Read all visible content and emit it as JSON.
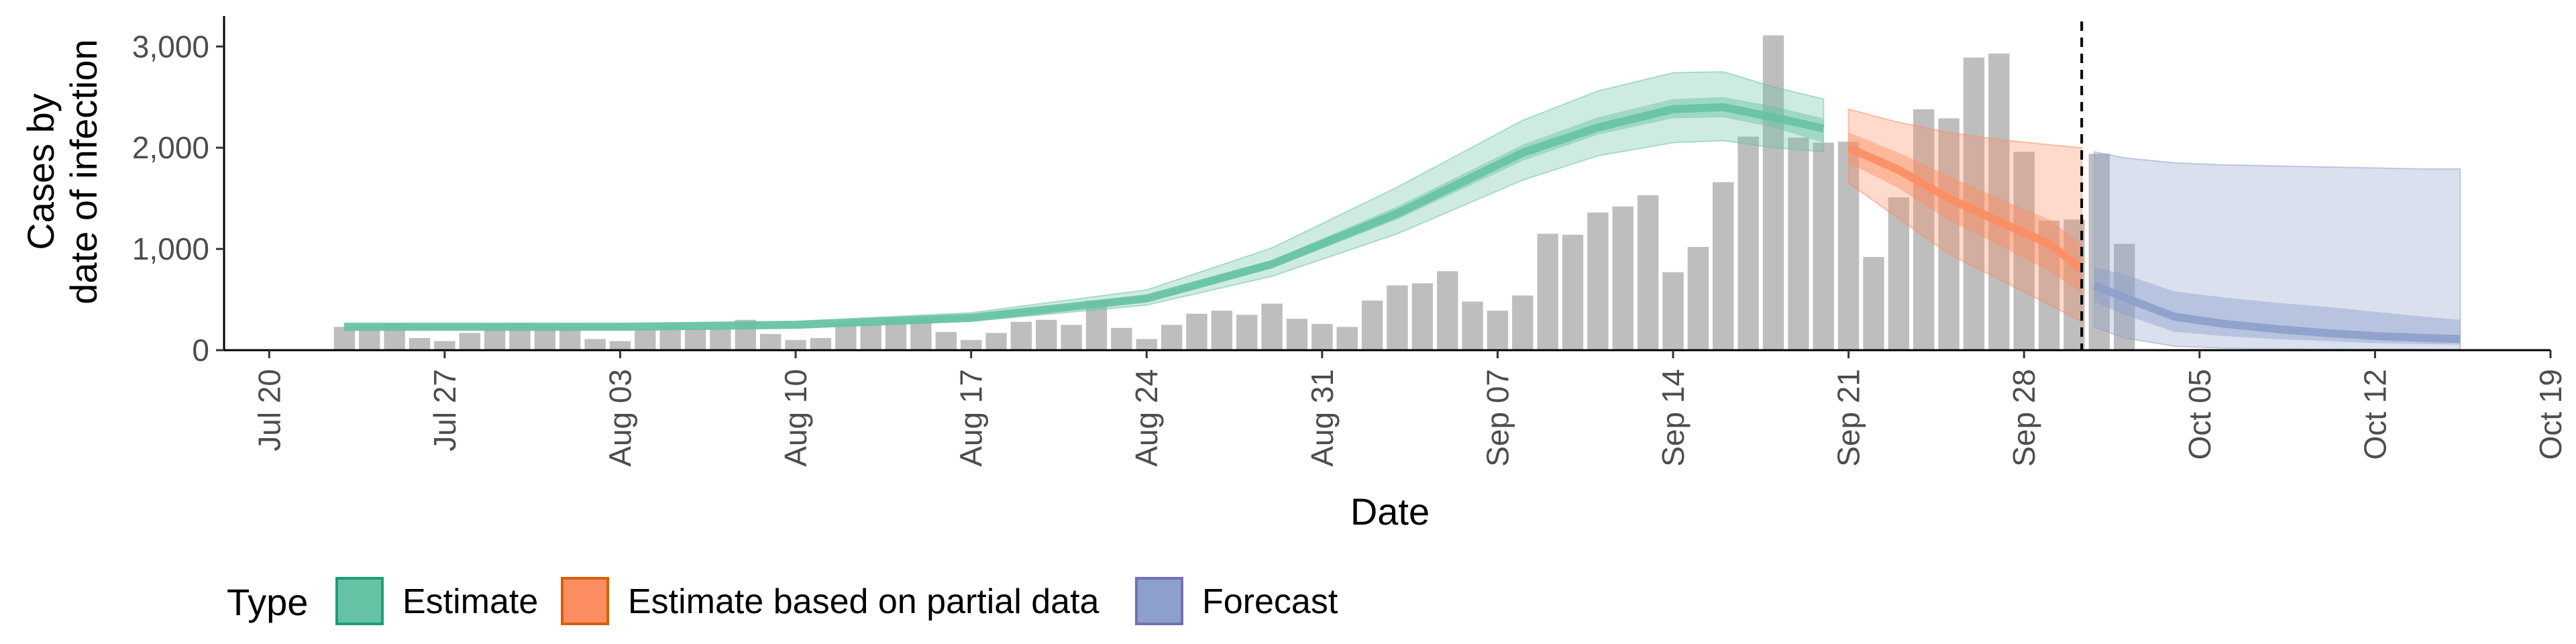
{
  "chart_data": {
    "type": "bar",
    "title": "",
    "xlabel": "Date",
    "ylabel_lines": [
      "Cases by",
      "date of infection"
    ],
    "ylim": [
      0,
      3300
    ],
    "y_ticks": [
      {
        "value": 0,
        "label": "0"
      },
      {
        "value": 1000,
        "label": "1,000"
      },
      {
        "value": 2000,
        "label": "2,000"
      },
      {
        "value": 3000,
        "label": "3,000"
      }
    ],
    "x_ticks": [
      {
        "day": 0,
        "label": "Jul 20"
      },
      {
        "day": 7,
        "label": "Jul 27"
      },
      {
        "day": 14,
        "label": "Aug 03"
      },
      {
        "day": 21,
        "label": "Aug 10"
      },
      {
        "day": 28,
        "label": "Aug 17"
      },
      {
        "day": 35,
        "label": "Aug 24"
      },
      {
        "day": 42,
        "label": "Aug 31"
      },
      {
        "day": 49,
        "label": "Sep 07"
      },
      {
        "day": 56,
        "label": "Sep 14"
      },
      {
        "day": 63,
        "label": "Sep 21"
      },
      {
        "day": 70,
        "label": "Sep 28"
      },
      {
        "day": 77,
        "label": "Oct 05"
      },
      {
        "day": 84,
        "label": "Oct 12"
      },
      {
        "day": 91,
        "label": "Oct 19"
      }
    ],
    "x_range_days": [
      -1.8,
      91
    ],
    "date_axis": {
      "tick_dates": [
        "Jul 20",
        "Jul 27",
        "Aug 03",
        "Aug 10",
        "Aug 17",
        "Aug 24",
        "Aug 31",
        "Sep 07",
        "Sep 14",
        "Sep 21",
        "Sep 28",
        "Oct 05",
        "Oct 12",
        "Oct 19"
      ]
    },
    "bars": {
      "start_day": 3,
      "color": "#bebebe",
      "values": [
        230,
        240,
        260,
        120,
        90,
        170,
        250,
        270,
        240,
        230,
        110,
        90,
        200,
        250,
        220,
        210,
        300,
        160,
        100,
        120,
        260,
        260,
        300,
        300,
        180,
        100,
        170,
        280,
        300,
        250,
        490,
        220,
        110,
        250,
        360,
        390,
        350,
        460,
        310,
        260,
        230,
        490,
        640,
        660,
        780,
        480,
        390,
        540,
        1150,
        1140,
        1360,
        1420,
        1530,
        770,
        1020,
        1660,
        2110,
        3110,
        2100,
        2050,
        2060,
        920,
        1510,
        2380,
        2290,
        2890,
        2930,
        1960,
        1280,
        1290,
        1940,
        1050
      ]
    },
    "vline_day": 72.3,
    "series": [
      {
        "name": "Estimate",
        "color": "#1b9e77",
        "fill": "#66c2a5",
        "x_days": [
          3,
          7,
          14,
          21,
          28,
          35,
          40,
          45,
          50,
          53,
          56,
          58,
          60,
          62
        ],
        "median": [
          230,
          230,
          230,
          250,
          320,
          510,
          850,
          1350,
          1950,
          2200,
          2380,
          2400,
          2300,
          2190
        ],
        "ci50_lower": [
          225,
          225,
          225,
          245,
          310,
          490,
          810,
          1290,
          1870,
          2130,
          2290,
          2300,
          2200,
          2050
        ],
        "ci50_upper": [
          240,
          240,
          240,
          260,
          335,
          530,
          890,
          1420,
          2030,
          2300,
          2480,
          2500,
          2410,
          2290
        ],
        "ci90_lower": [
          200,
          205,
          205,
          225,
          285,
          445,
          730,
          1150,
          1680,
          1920,
          2050,
          2070,
          2000,
          1960
        ],
        "ci90_upper": [
          265,
          265,
          265,
          285,
          370,
          595,
          1010,
          1610,
          2270,
          2560,
          2740,
          2750,
          2600,
          2480
        ]
      },
      {
        "name": "Estimate based on partial data",
        "color": "#d95f02",
        "fill": "#fc8d62",
        "x_days": [
          63,
          65,
          67,
          69,
          71,
          72.3
        ],
        "median": [
          2000,
          1780,
          1500,
          1270,
          1050,
          800
        ],
        "ci50_lower": [
          1850,
          1600,
          1280,
          1040,
          780,
          560
        ],
        "ci50_upper": [
          2150,
          1950,
          1720,
          1500,
          1290,
          1050
        ],
        "ci90_lower": [
          1650,
          1300,
          950,
          700,
          450,
          280
        ],
        "ci90_upper": [
          2380,
          2250,
          2150,
          2080,
          2030,
          2000
        ]
      },
      {
        "name": "Forecast",
        "color": "#7570b3",
        "fill": "#8da0cb",
        "x_days": [
          72.8,
          74,
          76,
          78,
          80,
          82,
          84,
          86,
          87.4
        ],
        "median": [
          640,
          520,
          330,
          260,
          210,
          170,
          140,
          120,
          110
        ],
        "ci50_lower": [
          480,
          350,
          180,
          140,
          110,
          90,
          70,
          60,
          55
        ],
        "ci50_upper": [
          820,
          750,
          580,
          520,
          470,
          430,
          380,
          330,
          300
        ],
        "ci90_lower": [
          230,
          120,
          40,
          20,
          15,
          10,
          8,
          6,
          5
        ],
        "ci90_upper": [
          1960,
          1900,
          1850,
          1830,
          1820,
          1810,
          1800,
          1790,
          1790
        ]
      }
    ],
    "legend": {
      "title": "Type",
      "placement": "bottom",
      "items": [
        "Estimate",
        "Estimate based on partial data",
        "Forecast"
      ]
    }
  }
}
